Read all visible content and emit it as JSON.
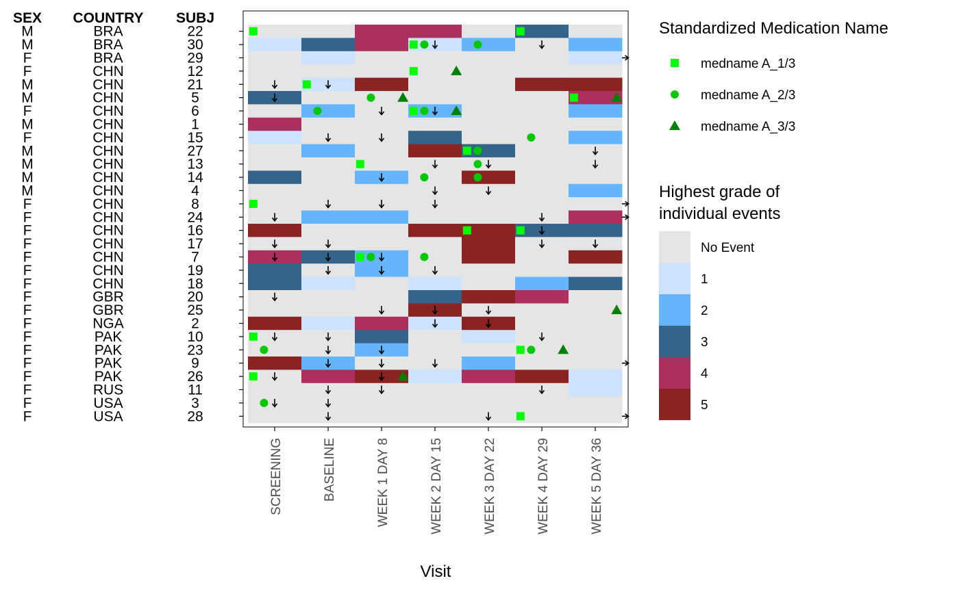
{
  "chart_data": {
    "type": "heatmap",
    "title": "",
    "xlabel": "Visit",
    "ylabel": "",
    "table_headers": [
      "SEX",
      "COUNTRY",
      "SUBJ"
    ],
    "visits": [
      "SCREENING",
      "BASELINE",
      "WEEK 1 DAY 8",
      "WEEK 2 DAY 15",
      "WEEK 3 DAY 22",
      "WEEK 4 DAY 29",
      "WEEK 5 DAY 36"
    ],
    "rows": [
      {
        "sex": "M",
        "country": "BRA",
        "subj": "22"
      },
      {
        "sex": "M",
        "country": "BRA",
        "subj": "30"
      },
      {
        "sex": "F",
        "country": "BRA",
        "subj": "29"
      },
      {
        "sex": "F",
        "country": "CHN",
        "subj": "12"
      },
      {
        "sex": "M",
        "country": "CHN",
        "subj": "21"
      },
      {
        "sex": "M",
        "country": "CHN",
        "subj": "5"
      },
      {
        "sex": "F",
        "country": "CHN",
        "subj": "6"
      },
      {
        "sex": "M",
        "country": "CHN",
        "subj": "1"
      },
      {
        "sex": "F",
        "country": "CHN",
        "subj": "15"
      },
      {
        "sex": "M",
        "country": "CHN",
        "subj": "27"
      },
      {
        "sex": "M",
        "country": "CHN",
        "subj": "13"
      },
      {
        "sex": "M",
        "country": "CHN",
        "subj": "14"
      },
      {
        "sex": "M",
        "country": "CHN",
        "subj": "4"
      },
      {
        "sex": "F",
        "country": "CHN",
        "subj": "8"
      },
      {
        "sex": "F",
        "country": "CHN",
        "subj": "24"
      },
      {
        "sex": "F",
        "country": "CHN",
        "subj": "16"
      },
      {
        "sex": "F",
        "country": "CHN",
        "subj": "17"
      },
      {
        "sex": "F",
        "country": "CHN",
        "subj": "7"
      },
      {
        "sex": "F",
        "country": "CHN",
        "subj": "19"
      },
      {
        "sex": "F",
        "country": "CHN",
        "subj": "18"
      },
      {
        "sex": "F",
        "country": "GBR",
        "subj": "20"
      },
      {
        "sex": "F",
        "country": "GBR",
        "subj": "25"
      },
      {
        "sex": "F",
        "country": "NGA",
        "subj": "2"
      },
      {
        "sex": "F",
        "country": "PAK",
        "subj": "10"
      },
      {
        "sex": "F",
        "country": "PAK",
        "subj": "23"
      },
      {
        "sex": "F",
        "country": "PAK",
        "subj": "9"
      },
      {
        "sex": "F",
        "country": "PAK",
        "subj": "26"
      },
      {
        "sex": "F",
        "country": "RUS",
        "subj": "11"
      },
      {
        "sex": "F",
        "country": "USA",
        "subj": "3"
      },
      {
        "sex": "F",
        "country": "USA",
        "subj": "28"
      }
    ],
    "grades": [
      [
        0,
        0,
        4,
        4,
        0,
        3,
        0
      ],
      [
        1,
        3,
        4,
        1,
        2,
        0,
        2
      ],
      [
        0,
        1,
        0,
        0,
        0,
        0,
        1
      ],
      [
        0,
        0,
        0,
        0,
        0,
        0,
        0
      ],
      [
        0,
        1,
        5,
        0,
        0,
        5,
        5
      ],
      [
        3,
        0,
        0,
        0,
        0,
        0,
        4
      ],
      [
        0,
        2,
        0,
        2,
        0,
        0,
        2
      ],
      [
        4,
        0,
        0,
        0,
        0,
        0,
        0
      ],
      [
        1,
        0,
        0,
        3,
        0,
        0,
        2
      ],
      [
        0,
        2,
        0,
        5,
        3,
        0,
        0
      ],
      [
        0,
        0,
        0,
        0,
        0,
        0,
        0
      ],
      [
        3,
        0,
        2,
        0,
        5,
        0,
        0
      ],
      [
        0,
        0,
        0,
        0,
        0,
        0,
        2
      ],
      [
        0,
        0,
        0,
        0,
        0,
        0,
        0
      ],
      [
        0,
        2,
        2,
        0,
        0,
        0,
        4
      ],
      [
        5,
        0,
        0,
        5,
        5,
        3,
        3
      ],
      [
        0,
        0,
        0,
        0,
        5,
        0,
        0
      ],
      [
        4,
        3,
        2,
        0,
        5,
        0,
        5
      ],
      [
        3,
        0,
        2,
        0,
        0,
        0,
        0
      ],
      [
        3,
        1,
        0,
        1,
        0,
        2,
        3
      ],
      [
        0,
        0,
        0,
        3,
        5,
        4,
        0
      ],
      [
        0,
        0,
        0,
        5,
        0,
        0,
        0
      ],
      [
        5,
        1,
        4,
        1,
        5,
        0,
        0
      ],
      [
        0,
        0,
        3,
        0,
        1,
        0,
        0
      ],
      [
        0,
        0,
        2,
        0,
        0,
        0,
        0
      ],
      [
        5,
        2,
        0,
        0,
        2,
        0,
        0
      ],
      [
        0,
        4,
        5,
        1,
        4,
        5,
        1
      ],
      [
        0,
        0,
        0,
        0,
        0,
        0,
        1
      ],
      [
        0,
        0,
        0,
        0,
        0,
        0,
        0
      ],
      [
        0,
        0,
        0,
        0,
        0,
        0,
        0
      ]
    ],
    "grade_legend": {
      "title_lines": [
        "Highest grade of",
        "individual events"
      ],
      "labels": [
        "No Event",
        "1",
        "2",
        "3",
        "4",
        "5"
      ],
      "colors": [
        "#e5e5e5",
        "#cce2fd",
        "#65b5fc",
        "#35638a",
        "#ad2f5d",
        "#8a2422"
      ]
    },
    "medication_legend": {
      "title": "Standardized Medication Name",
      "entries": [
        {
          "label": "medname A_1/3",
          "shape": "square",
          "color": "#00ff00"
        },
        {
          "label": "medname A_2/3",
          "shape": "circle",
          "color": "#00c800"
        },
        {
          "label": "medname A_3/3",
          "shape": "triangle",
          "color": "#008000"
        }
      ]
    },
    "medications": [
      {
        "row": 0,
        "x": 0.1,
        "med": 0
      },
      {
        "row": 0,
        "x": 5.1,
        "med": 0
      },
      {
        "row": 1,
        "x": 3.1,
        "med": 0
      },
      {
        "row": 1,
        "x": 3.3,
        "med": 1
      },
      {
        "row": 1,
        "x": 4.3,
        "med": 1
      },
      {
        "row": 3,
        "x": 3.1,
        "med": 0
      },
      {
        "row": 3,
        "x": 3.9,
        "med": 2
      },
      {
        "row": 4,
        "x": 1.1,
        "med": 0
      },
      {
        "row": 5,
        "x": 2.3,
        "med": 1
      },
      {
        "row": 5,
        "x": 2.9,
        "med": 2
      },
      {
        "row": 5,
        "x": 6.1,
        "med": 0
      },
      {
        "row": 5,
        "x": 6.9,
        "med": 2
      },
      {
        "row": 6,
        "x": 1.3,
        "med": 1
      },
      {
        "row": 6,
        "x": 3.1,
        "med": 0
      },
      {
        "row": 6,
        "x": 3.3,
        "med": 1
      },
      {
        "row": 6,
        "x": 3.9,
        "med": 2
      },
      {
        "row": 8,
        "x": 5.3,
        "med": 1
      },
      {
        "row": 9,
        "x": 4.1,
        "med": 0
      },
      {
        "row": 9,
        "x": 4.3,
        "med": 1
      },
      {
        "row": 10,
        "x": 2.1,
        "med": 0
      },
      {
        "row": 10,
        "x": 4.3,
        "med": 1
      },
      {
        "row": 11,
        "x": 3.3,
        "med": 1
      },
      {
        "row": 11,
        "x": 4.3,
        "med": 1
      },
      {
        "row": 13,
        "x": 0.1,
        "med": 0
      },
      {
        "row": 15,
        "x": 4.1,
        "med": 0
      },
      {
        "row": 15,
        "x": 5.1,
        "med": 0
      },
      {
        "row": 17,
        "x": 2.1,
        "med": 0
      },
      {
        "row": 17,
        "x": 2.3,
        "med": 1
      },
      {
        "row": 17,
        "x": 3.3,
        "med": 1
      },
      {
        "row": 21,
        "x": 6.9,
        "med": 2
      },
      {
        "row": 23,
        "x": 0.1,
        "med": 0
      },
      {
        "row": 24,
        "x": 0.3,
        "med": 1
      },
      {
        "row": 24,
        "x": 5.1,
        "med": 0
      },
      {
        "row": 24,
        "x": 5.3,
        "med": 1
      },
      {
        "row": 24,
        "x": 5.9,
        "med": 2
      },
      {
        "row": 26,
        "x": 0.1,
        "med": 0
      },
      {
        "row": 26,
        "x": 2.9,
        "med": 2
      },
      {
        "row": 28,
        "x": 0.3,
        "med": 1
      },
      {
        "row": 29,
        "x": 5.1,
        "med": 0
      }
    ],
    "arrows_down": [
      {
        "row": 1,
        "x": 3.5
      },
      {
        "row": 1,
        "x": 5.5
      },
      {
        "row": 4,
        "x": 0.5
      },
      {
        "row": 4,
        "x": 1.5
      },
      {
        "row": 5,
        "x": 0.5
      },
      {
        "row": 6,
        "x": 2.5
      },
      {
        "row": 6,
        "x": 3.5
      },
      {
        "row": 8,
        "x": 1.5
      },
      {
        "row": 8,
        "x": 2.5
      },
      {
        "row": 9,
        "x": 6.5
      },
      {
        "row": 10,
        "x": 3.5
      },
      {
        "row": 10,
        "x": 4.5
      },
      {
        "row": 10,
        "x": 6.5
      },
      {
        "row": 11,
        "x": 2.5
      },
      {
        "row": 12,
        "x": 3.5
      },
      {
        "row": 12,
        "x": 4.5
      },
      {
        "row": 13,
        "x": 1.5
      },
      {
        "row": 13,
        "x": 2.5
      },
      {
        "row": 13,
        "x": 3.5
      },
      {
        "row": 14,
        "x": 0.5
      },
      {
        "row": 14,
        "x": 5.5
      },
      {
        "row": 15,
        "x": 5.5
      },
      {
        "row": 16,
        "x": 0.5
      },
      {
        "row": 16,
        "x": 1.5
      },
      {
        "row": 16,
        "x": 5.5
      },
      {
        "row": 16,
        "x": 6.5
      },
      {
        "row": 17,
        "x": 0.5
      },
      {
        "row": 17,
        "x": 1.5
      },
      {
        "row": 17,
        "x": 2.5
      },
      {
        "row": 18,
        "x": 1.5
      },
      {
        "row": 18,
        "x": 2.5
      },
      {
        "row": 18,
        "x": 3.5
      },
      {
        "row": 20,
        "x": 0.5
      },
      {
        "row": 21,
        "x": 2.5
      },
      {
        "row": 21,
        "x": 3.5
      },
      {
        "row": 21,
        "x": 4.5
      },
      {
        "row": 22,
        "x": 3.5
      },
      {
        "row": 22,
        "x": 4.5
      },
      {
        "row": 23,
        "x": 0.5
      },
      {
        "row": 23,
        "x": 1.5
      },
      {
        "row": 23,
        "x": 5.5
      },
      {
        "row": 24,
        "x": 1.5
      },
      {
        "row": 24,
        "x": 2.5
      },
      {
        "row": 25,
        "x": 1.5
      },
      {
        "row": 25,
        "x": 2.5
      },
      {
        "row": 25,
        "x": 3.5
      },
      {
        "row": 26,
        "x": 0.5
      },
      {
        "row": 26,
        "x": 2.5
      },
      {
        "row": 27,
        "x": 1.5
      },
      {
        "row": 27,
        "x": 2.5
      },
      {
        "row": 27,
        "x": 5.5
      },
      {
        "row": 28,
        "x": 0.5
      },
      {
        "row": 28,
        "x": 1.5
      },
      {
        "row": 29,
        "x": 1.5
      },
      {
        "row": 29,
        "x": 4.5
      }
    ],
    "arrows_right": [
      2,
      13,
      14,
      25,
      29
    ]
  }
}
